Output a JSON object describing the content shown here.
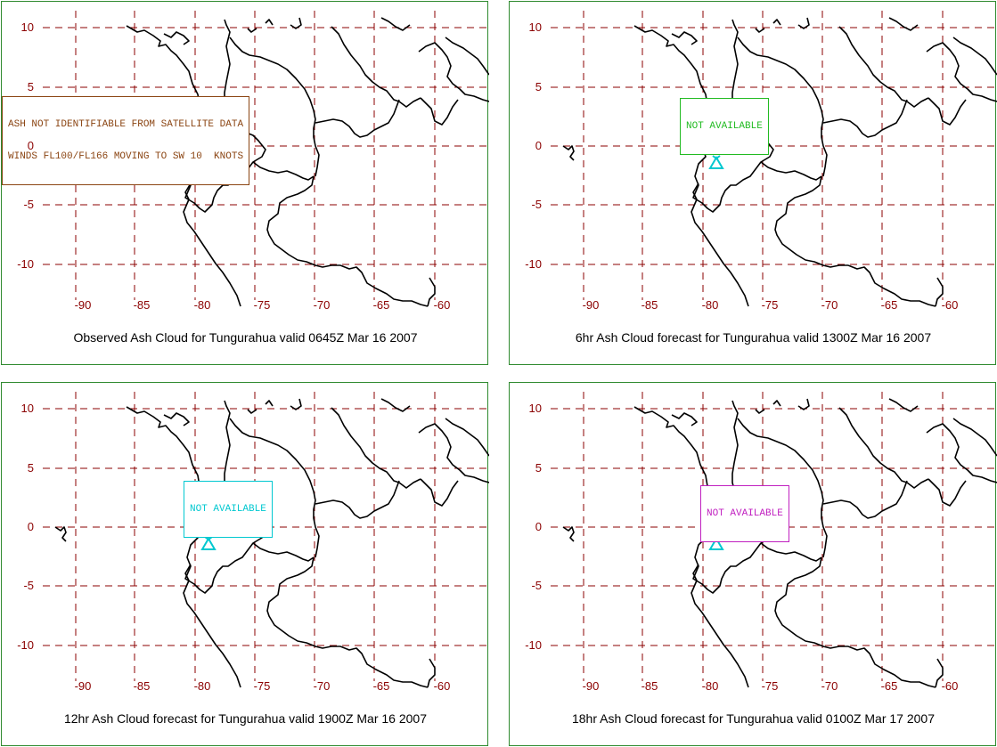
{
  "colors": {
    "grid": "#8b0000",
    "coast": "#000000",
    "volcano": "#00c8d0",
    "frame": "#2f8a2f"
  },
  "axis": {
    "lat_labels": [
      "10",
      "5",
      "0",
      "-5",
      "-10"
    ],
    "lon_labels": [
      "-90",
      "-85",
      "-80",
      "-75",
      "-70",
      "-65",
      "-60"
    ]
  },
  "panels": [
    {
      "caption": "Observed Ash Cloud for Tungurahua valid 0645Z Mar 16 2007",
      "box_lines": [
        "ASH NOT IDENTIFIABLE FROM SATELLITE DATA",
        "WINDS FL100/FL166 MOVING TO SW 10  KNOTS"
      ],
      "box_color": "#8b4513",
      "volcano_icon": "volcano-icon"
    },
    {
      "caption": "6hr Ash Cloud forecast for Tungurahua valid 1300Z Mar 16 2007",
      "box_lines": [
        "NOT AVAILABLE"
      ],
      "box_color": "#22bb22",
      "volcano_icon": "volcano-icon"
    },
    {
      "caption": "12hr Ash Cloud forecast for Tungurahua valid 1900Z Mar 16 2007",
      "box_lines": [
        "NOT AVAILABLE"
      ],
      "box_color": "#00c8d0",
      "volcano_icon": "volcano-icon"
    },
    {
      "caption": "18hr Ash Cloud forecast for Tungurahua valid 0100Z Mar 17 2007",
      "box_lines": [
        "NOT AVAILABLE"
      ],
      "box_color": "#c020c0",
      "volcano_icon": "volcano-icon"
    }
  ]
}
